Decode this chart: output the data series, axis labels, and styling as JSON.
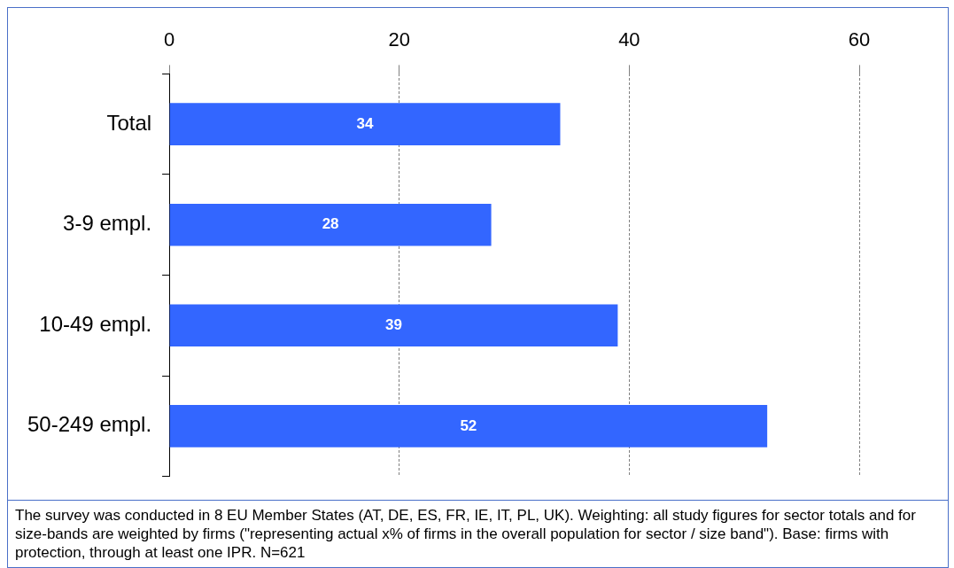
{
  "chart_data": {
    "type": "bar",
    "orientation": "horizontal",
    "categories": [
      "Total",
      "3-9 empl.",
      "10-49 empl.",
      "50-249 empl."
    ],
    "values": [
      34,
      28,
      39,
      52
    ],
    "color": "#3366ff",
    "xlim": [
      0,
      60
    ],
    "xticks": [
      0,
      20,
      40,
      60
    ],
    "grid": "x",
    "data_labels": true,
    "legend": false,
    "annotations": [
      "The survey was conducted in 8 EU Member States (AT, DE, ES, FR, IE, IT, PL, UK). Weighting: all study figures for sector totals  and for size-bands are weighted by firms (\"representing actual  x% of firms in the overall population for sector / size band\").  Base: firms with protection, through at least one IPR. N=621"
    ]
  }
}
